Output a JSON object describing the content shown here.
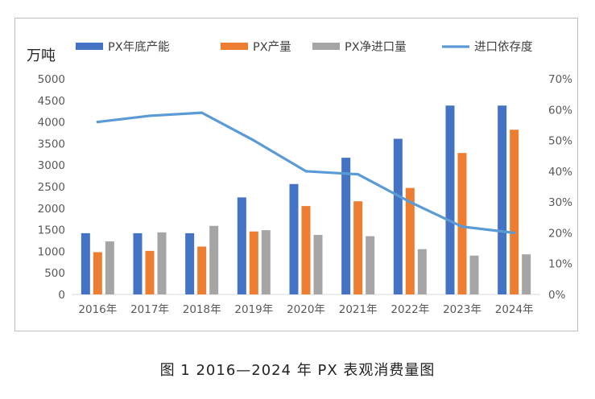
{
  "chart_data": {
    "type": "bar",
    "title": "",
    "ylabel": "万吨",
    "categories": [
      "2016年",
      "2017年",
      "2018年",
      "2019年",
      "2020年",
      "2021年",
      "2022年",
      "2023年",
      "2024年"
    ],
    "series": [
      {
        "name": "PX年底产能",
        "type": "bar",
        "axis": "left",
        "color": "#4472c4",
        "values": [
          1420,
          1420,
          1420,
          2250,
          2560,
          3170,
          3610,
          4380,
          4380
        ]
      },
      {
        "name": "PX产量",
        "type": "bar",
        "axis": "left",
        "color": "#ed7d31",
        "values": [
          980,
          1010,
          1110,
          1460,
          2050,
          2160,
          2470,
          3280,
          3820
        ]
      },
      {
        "name": "PX净进口量",
        "type": "bar",
        "axis": "left",
        "color": "#a5a5a5",
        "values": [
          1230,
          1440,
          1590,
          1490,
          1380,
          1350,
          1050,
          900,
          930
        ]
      },
      {
        "name": "进口依存度",
        "type": "line",
        "axis": "right",
        "color": "#5b9bd5",
        "values": [
          56,
          58,
          59,
          50,
          40,
          39,
          30,
          22,
          20
        ]
      }
    ],
    "y_left": {
      "min": 0,
      "max": 5000,
      "step": 500,
      "ticks": [
        "0",
        "500",
        "1000",
        "1500",
        "2000",
        "2500",
        "3000",
        "3500",
        "4000",
        "4500",
        "5000"
      ]
    },
    "y_right": {
      "min": 0,
      "max": 70,
      "step": 10,
      "ticks": [
        "0%",
        "10%",
        "20%",
        "30%",
        "40%",
        "50%",
        "60%",
        "70%"
      ]
    },
    "grid": false,
    "legend": "top"
  },
  "caption": "图 1 2016—2024 年 PX 表观消费量图"
}
